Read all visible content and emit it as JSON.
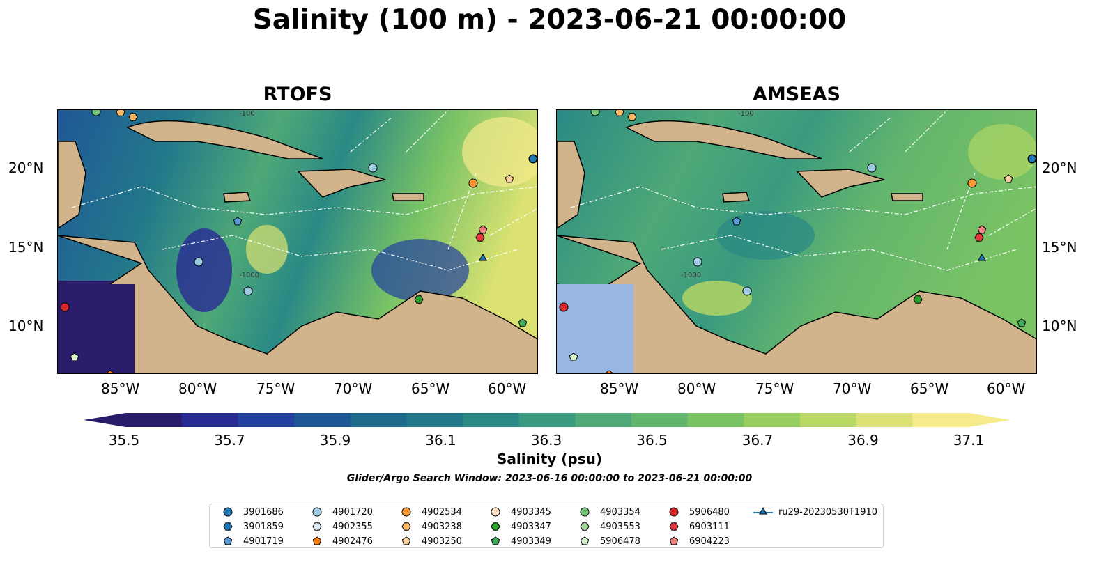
{
  "title": "Salinity (100 m) - 2023-06-21 00:00:00",
  "panels": [
    {
      "title": "RTOFS"
    },
    {
      "title": "AMSEAS"
    }
  ],
  "axes": {
    "lon_ticks": [
      "85°W",
      "80°W",
      "75°W",
      "70°W",
      "65°W",
      "60°W"
    ],
    "lat_ticks": [
      "20°N",
      "15°N",
      "10°N"
    ],
    "contour_labels": [
      "-100",
      "-1000"
    ]
  },
  "colorbar": {
    "label": "Salinity (psu)",
    "ticks": [
      "35.5",
      "35.7",
      "35.9",
      "36.1",
      "36.3",
      "36.5",
      "36.7",
      "36.9",
      "37.1"
    ],
    "colors": [
      "#2b1b6b",
      "#292b94",
      "#2440a0",
      "#1f5797",
      "#1d6a8c",
      "#23798a",
      "#2a8985",
      "#3a9a7f",
      "#4ea877",
      "#63b56d",
      "#79c365",
      "#98cd60",
      "#b9d864",
      "#dbe272",
      "#f5ea8c"
    ]
  },
  "search_window": "Glider/Argo Search Window: 2023-06-16 00:00:00 to 2023-06-21 00:00:00",
  "legend": [
    {
      "label": "3901686",
      "marker": "circle",
      "color": "#1f77b4"
    },
    {
      "label": "3901859",
      "marker": "hexagon",
      "color": "#1f77b4"
    },
    {
      "label": "4901719",
      "marker": "pentagon",
      "color": "#5b9bd5"
    },
    {
      "label": "4901720",
      "marker": "circle",
      "color": "#9ecae1"
    },
    {
      "label": "4902355",
      "marker": "hexagon",
      "color": "#deebf7"
    },
    {
      "label": "4902476",
      "marker": "pentagon",
      "color": "#ff7f0e"
    },
    {
      "label": "4902534",
      "marker": "circle",
      "color": "#fd9a35"
    },
    {
      "label": "4903238",
      "marker": "hexagon",
      "color": "#fdb863"
    },
    {
      "label": "4903250",
      "marker": "pentagon",
      "color": "#fdd0a2"
    },
    {
      "label": "4903345",
      "marker": "circle",
      "color": "#fde0c5"
    },
    {
      "label": "4903347",
      "marker": "hexagon",
      "color": "#2ca02c"
    },
    {
      "label": "4903349",
      "marker": "pentagon",
      "color": "#41ab5d"
    },
    {
      "label": "4903354",
      "marker": "circle",
      "color": "#74c476"
    },
    {
      "label": "4903553",
      "marker": "hexagon",
      "color": "#a1d99b"
    },
    {
      "label": "5906478",
      "marker": "pentagon",
      "color": "#d9f5d0"
    },
    {
      "label": "5906480",
      "marker": "circle",
      "color": "#d62728"
    },
    {
      "label": "6903111",
      "marker": "hexagon",
      "color": "#e3393e"
    },
    {
      "label": "6904223",
      "marker": "pentagon",
      "color": "#f08080"
    },
    {
      "label": "ru29-20230530T1910",
      "marker": "triangle",
      "color": "#1f77b4"
    }
  ],
  "colors": {
    "land": "#d2b48c",
    "shelf": "#97b6e1",
    "border": "#000000"
  }
}
